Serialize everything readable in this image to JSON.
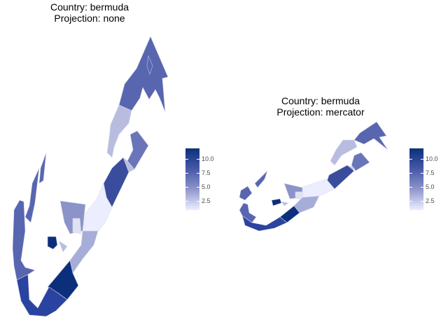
{
  "panels": [
    {
      "title_line1": "Country: bermuda",
      "title_line2": "Projection: none",
      "legend": {
        "ticks": [
          "10.0",
          "7.5",
          "5.0",
          "2.5"
        ],
        "tick_values": [
          10.0,
          7.5,
          5.0,
          2.5
        ],
        "range": [
          1,
          11.2
        ]
      }
    },
    {
      "title_line1": "Country: bermuda",
      "title_line2": "Projection: mercator",
      "legend": {
        "ticks": [
          "10.0",
          "7.5",
          "5.0",
          "2.5"
        ],
        "tick_values": [
          10.0,
          7.5,
          5.0,
          2.5
        ],
        "range": [
          1,
          11.2
        ]
      }
    }
  ],
  "colors": {
    "high": "#0c2f7c",
    "mid": "#5866b0",
    "low": "#eceeff",
    "border": "#d9d9e8"
  }
}
